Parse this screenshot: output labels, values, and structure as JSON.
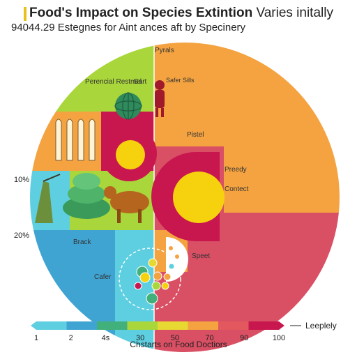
{
  "title": {
    "bold": "Food's Impact on Species Extintion",
    "regular": "Varies initally"
  },
  "subtitle": "94044.29 Estegnes for Aint ances aft by Specinery",
  "chart_data": {
    "type": "other",
    "title": "Food's Impact on Species Extintion Varies initally",
    "subtitle": "94044.29 Estegnes for Aint ances aft by Specinery",
    "side_ticks": [
      "10%",
      "20%"
    ],
    "region_labels": [
      {
        "text": "Pyrals",
        "color": "#c8e030"
      },
      {
        "text": "Perencial Restmel",
        "color": "#a9d63a"
      },
      {
        "text": "Bart",
        "color": "#a9d63a"
      },
      {
        "text": "Safer Sills",
        "color": "#a9d63a"
      },
      {
        "text": "Pistel",
        "color": "#f4a340"
      },
      {
        "text": "Preedy",
        "color": "#e2585e"
      },
      {
        "text": "Contect",
        "color": "#d94f64"
      },
      {
        "text": "Brack",
        "color": "#3fa4d2"
      },
      {
        "text": "Speet",
        "color": "#f4a340"
      },
      {
        "text": "Cafer",
        "color": "#5ecfe0"
      }
    ],
    "scale": {
      "ticks": [
        "1",
        "2",
        "4s",
        "30",
        "50",
        "70",
        "90",
        "100"
      ],
      "colors": [
        "#5ecfe0",
        "#3fa4d2",
        "#42b07a",
        "#a9d63a",
        "#e8d832",
        "#f4a340",
        "#e2585e",
        "#c8174e"
      ],
      "legend_label": "Leeplely"
    },
    "caption": "Chstarts on Food Doctiors"
  },
  "colors": {
    "orange": "#f4a340",
    "rose": "#d94f64",
    "crimson": "#c8174e",
    "lime": "#a9d63a",
    "yellow": "#f5d10e",
    "teal": "#5ecfe0",
    "blue": "#3fa4d2",
    "green": "#42b07a",
    "accent": "#e8c21a"
  }
}
